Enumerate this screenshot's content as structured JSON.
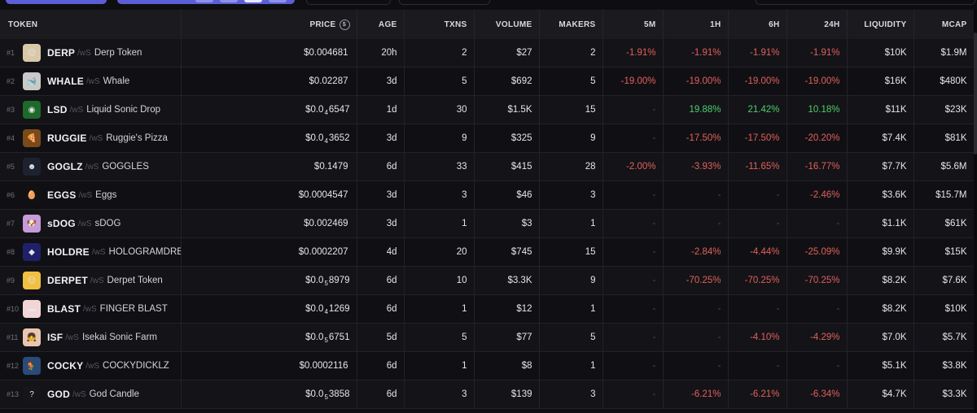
{
  "columns": {
    "token": "TOKEN",
    "price": "PRICE",
    "age": "AGE",
    "txns": "TXNS",
    "volume": "VOLUME",
    "makers": "MAKERS",
    "m5": "5M",
    "h1": "1H",
    "h6": "6H",
    "h24": "24H",
    "liquidity": "LIQUIDITY",
    "mcap": "MCAP"
  },
  "rows": [
    {
      "rank": "#1",
      "symbol": "DERP",
      "pair": "/wS",
      "name": "Derp Token",
      "price_main": "$0.004681",
      "price_sub": "",
      "price_tail": "",
      "age": "20h",
      "txns": "2",
      "volume": "$27",
      "makers": "2",
      "m5": "-1.91%",
      "h1": "-1.91%",
      "h6": "-1.91%",
      "h24": "-1.91%",
      "liquidity": "$10K",
      "mcap": "$1.9M",
      "avatar_color": "#d8c8a8",
      "avatar_glyph": "😐"
    },
    {
      "rank": "#2",
      "symbol": "WHALE",
      "pair": "/wS",
      "name": "Whale",
      "price_main": "$0.02287",
      "price_sub": "",
      "price_tail": "",
      "age": "3d",
      "txns": "5",
      "volume": "$692",
      "makers": "5",
      "m5": "-19.00%",
      "h1": "-19.00%",
      "h6": "-19.00%",
      "h24": "-19.00%",
      "liquidity": "$16K",
      "mcap": "$480K",
      "avatar_color": "#c9c9c9",
      "avatar_glyph": "🐋"
    },
    {
      "rank": "#3",
      "symbol": "LSD",
      "pair": "/wS",
      "name": "Liquid Sonic Drop",
      "price_main": "$0.0",
      "price_sub": "4",
      "price_tail": "6547",
      "age": "1d",
      "txns": "30",
      "volume": "$1.5K",
      "makers": "15",
      "m5": "-",
      "h1": "19.88%",
      "h6": "21.42%",
      "h24": "10.18%",
      "liquidity": "$11K",
      "mcap": "$23K",
      "avatar_color": "#1e6a2a",
      "avatar_glyph": "◉"
    },
    {
      "rank": "#4",
      "symbol": "RUGGIE",
      "pair": "/wS",
      "name": "Ruggie's Pizza",
      "price_main": "$0.0",
      "price_sub": "4",
      "price_tail": "3652",
      "age": "3d",
      "txns": "9",
      "volume": "$325",
      "makers": "9",
      "m5": "-",
      "h1": "-17.50%",
      "h6": "-17.50%",
      "h24": "-20.20%",
      "liquidity": "$7.4K",
      "mcap": "$81K",
      "avatar_color": "#7a4a1a",
      "avatar_glyph": "🍕"
    },
    {
      "rank": "#5",
      "symbol": "GOGLZ",
      "pair": "/wS",
      "name": "GOGGLES",
      "price_main": "$0.1479",
      "price_sub": "",
      "price_tail": "",
      "age": "6d",
      "txns": "33",
      "volume": "$415",
      "makers": "28",
      "m5": "-2.00%",
      "h1": "-3.93%",
      "h6": "-11.65%",
      "h24": "-16.77%",
      "liquidity": "$7.7K",
      "mcap": "$5.6M",
      "avatar_color": "#1c2230",
      "avatar_glyph": "☻"
    },
    {
      "rank": "#6",
      "symbol": "EGGS",
      "pair": "/wS",
      "name": "Eggs",
      "price_main": "$0.0004547",
      "price_sub": "",
      "price_tail": "",
      "age": "3d",
      "txns": "3",
      "volume": "$46",
      "makers": "3",
      "m5": "-",
      "h1": "-",
      "h6": "-",
      "h24": "-2.46%",
      "liquidity": "$3.6K",
      "mcap": "$15.7M",
      "avatar_color": "#111114",
      "avatar_glyph": "🥚"
    },
    {
      "rank": "#7",
      "symbol": "sDOG",
      "pair": "/wS",
      "name": "sDOG",
      "price_main": "$0.002469",
      "price_sub": "",
      "price_tail": "",
      "age": "3d",
      "txns": "1",
      "volume": "$3",
      "makers": "1",
      "m5": "-",
      "h1": "-",
      "h6": "-",
      "h24": "-",
      "liquidity": "$1.1K",
      "mcap": "$61K",
      "avatar_color": "#c79ad8",
      "avatar_glyph": "🐶"
    },
    {
      "rank": "#8",
      "symbol": "HOLDRE",
      "pair": "/wS",
      "name": "HOLOGRAMDRE",
      "price_main": "$0.0002207",
      "price_sub": "",
      "price_tail": "",
      "age": "4d",
      "txns": "20",
      "volume": "$745",
      "makers": "15",
      "m5": "-",
      "h1": "-2.84%",
      "h6": "-4.44%",
      "h24": "-25.09%",
      "liquidity": "$9.9K",
      "mcap": "$15K",
      "avatar_color": "#20206a",
      "avatar_glyph": "◆"
    },
    {
      "rank": "#9",
      "symbol": "DERPET",
      "pair": "/wS",
      "name": "Derpet Token",
      "price_main": "$0.0",
      "price_sub": "5",
      "price_tail": "8979",
      "age": "6d",
      "txns": "10",
      "volume": "$3.3K",
      "makers": "9",
      "m5": "-",
      "h1": "-70.25%",
      "h6": "-70.25%",
      "h24": "-70.25%",
      "liquidity": "$8.2K",
      "mcap": "$7.6K",
      "avatar_color": "#f0c040",
      "avatar_glyph": "😑"
    },
    {
      "rank": "#10",
      "symbol": "BLAST",
      "pair": "/wS",
      "name": "FINGER BLAST",
      "price_main": "$0.0",
      "price_sub": "4",
      "price_tail": "1269",
      "age": "6d",
      "txns": "1",
      "volume": "$12",
      "makers": "1",
      "m5": "-",
      "h1": "-",
      "h6": "-",
      "h24": "-",
      "liquidity": "$8.2K",
      "mcap": "$10K",
      "avatar_color": "#f2d6d6",
      "avatar_glyph": "▬"
    },
    {
      "rank": "#11",
      "symbol": "ISF",
      "pair": "/wS",
      "name": "Isekai Sonic Farm",
      "price_main": "$0.0",
      "price_sub": "5",
      "price_tail": "6751",
      "age": "5d",
      "txns": "5",
      "volume": "$77",
      "makers": "5",
      "m5": "-",
      "h1": "-",
      "h6": "-4.10%",
      "h24": "-4.29%",
      "liquidity": "$7.0K",
      "mcap": "$5.7K",
      "avatar_color": "#e8c6b0",
      "avatar_glyph": "👧"
    },
    {
      "rank": "#12",
      "symbol": "COCKY",
      "pair": "/wS",
      "name": "COCKYDICKLZ",
      "price_main": "$0.0002116",
      "price_sub": "",
      "price_tail": "",
      "age": "6d",
      "txns": "1",
      "volume": "$8",
      "makers": "1",
      "m5": "-",
      "h1": "-",
      "h6": "-",
      "h24": "-",
      "liquidity": "$5.1K",
      "mcap": "$3.8K",
      "avatar_color": "#2a4a7a",
      "avatar_glyph": "🐓"
    },
    {
      "rank": "#13",
      "symbol": "GOD",
      "pair": "/wS",
      "name": "God Candle",
      "price_main": "$0.0",
      "price_sub": "5",
      "price_tail": "3858",
      "age": "6d",
      "txns": "3",
      "volume": "$139",
      "makers": "3",
      "m5": "-",
      "h1": "-6.21%",
      "h6": "-6.21%",
      "h24": "-6.34%",
      "liquidity": "$4.7K",
      "mcap": "$3.3K",
      "avatar_color": "#15151a",
      "avatar_glyph": "?"
    }
  ],
  "colors": {
    "negative": "#e2605a",
    "positive": "#4fd06b",
    "accent": "#5b5fd6"
  }
}
